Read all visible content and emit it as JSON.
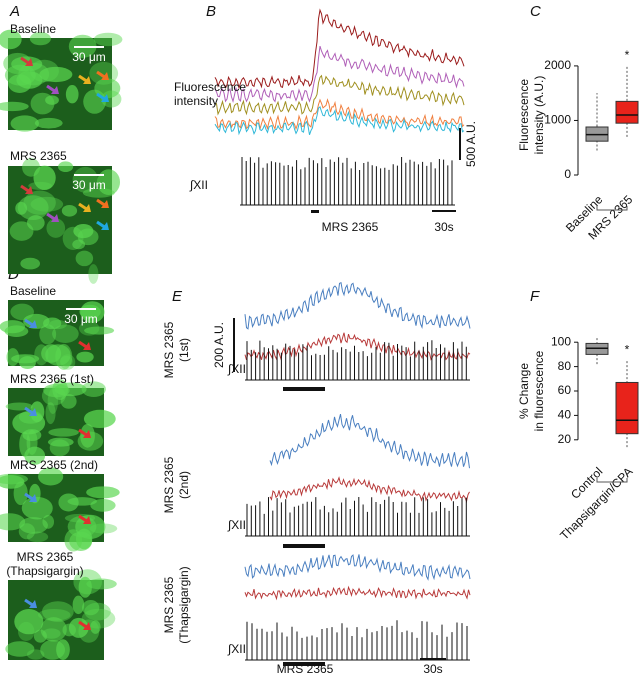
{
  "panels": {
    "A": {
      "label": "A",
      "images": [
        {
          "title": "Baseline",
          "scale": "30 μm"
        },
        {
          "title": "MRS 2365",
          "scale": "30 μm"
        }
      ]
    },
    "B": {
      "label": "B",
      "ylabel": [
        "Fluorescence",
        "intensity"
      ],
      "scale": "500 A.U.",
      "trace": "∫XII",
      "stimulus": "MRS 2365",
      "time": "30s"
    },
    "C": {
      "label": "C"
    },
    "D": {
      "label": "D",
      "images": [
        {
          "title": [
            "Baseline"
          ],
          "scale": "30 μm"
        },
        {
          "title": [
            "MRS 2365 (1st)"
          ]
        },
        {
          "title": [
            "MRS 2365 (2nd)"
          ]
        },
        {
          "title": [
            "MRS 2365",
            "(Thapsigargin)"
          ]
        }
      ]
    },
    "E": {
      "label": "E",
      "scale": "200 A.U.",
      "trace": "∫XII",
      "stimulus": "MRS 2365",
      "time": "30s",
      "rows": [
        {
          "label": [
            "MRS 2365",
            "(1st)"
          ]
        },
        {
          "label": [
            "MRS 2365",
            "(2nd)"
          ]
        },
        {
          "label": [
            "MRS 2365",
            "(Thapsigargin)"
          ]
        }
      ]
    },
    "F": {
      "label": "F"
    }
  },
  "chart_data": [
    {
      "type": "box",
      "ylabel": [
        "Fluorescence",
        "intensity (A.U.)"
      ],
      "categories": [
        "Baseline",
        "MRS 2365"
      ],
      "colors": [
        "#999999",
        "#e8231b"
      ],
      "ylim": [
        0,
        2200
      ],
      "yticks": [
        0,
        1000,
        2000
      ],
      "annotation": "*",
      "boxes": [
        {
          "min": 450,
          "q1": 620,
          "median": 740,
          "q3": 880,
          "max": 1500
        },
        {
          "min": 700,
          "q1": 950,
          "median": 1100,
          "q3": 1350,
          "max": 2000
        }
      ]
    },
    {
      "type": "box",
      "ylabel": [
        "% Change",
        "in fluorescence"
      ],
      "categories": [
        "Control",
        "Thapsigargin/CPA"
      ],
      "colors": [
        "#999999",
        "#e8231b"
      ],
      "ylim": [
        10,
        110
      ],
      "yticks": [
        20,
        40,
        60,
        80,
        100
      ],
      "annotation": "*",
      "boxes": [
        {
          "min": 82,
          "q1": 90,
          "median": 95,
          "q3": 99,
          "max": 104
        },
        {
          "min": 14,
          "q1": 25,
          "median": 36,
          "q3": 67,
          "max": 85
        }
      ]
    }
  ]
}
